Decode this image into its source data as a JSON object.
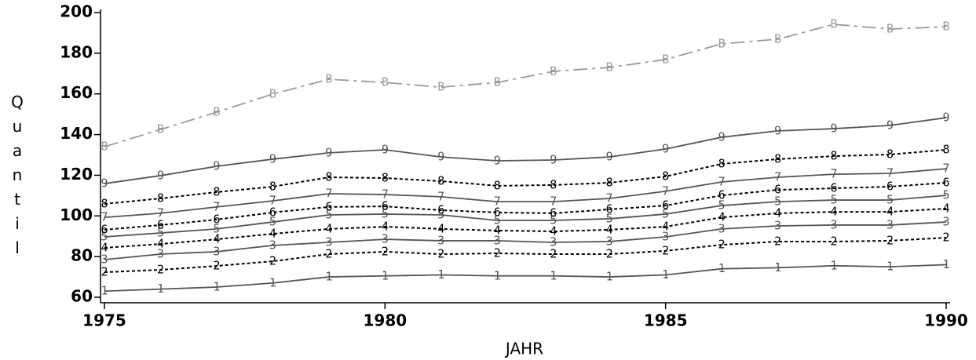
{
  "chart_data": {
    "type": "line",
    "x_label": "JAHR",
    "y_label": "Quantil",
    "x": [
      1975,
      1976,
      1977,
      1978,
      1979,
      1980,
      1981,
      1982,
      1983,
      1984,
      1985,
      1986,
      1987,
      1988,
      1989,
      1990
    ],
    "xlim": [
      1975,
      1990
    ],
    "xticks": [
      1975,
      1980,
      1985,
      1990
    ],
    "ylim": [
      60,
      200
    ],
    "yticks": [
      60,
      80,
      100,
      120,
      140,
      160,
      180,
      200
    ],
    "series": [
      {
        "name": "1",
        "color": "#555555",
        "line_style": "solid",
        "values": [
          63,
          64,
          65,
          67,
          70,
          70.5,
          71,
          70.5,
          70.5,
          70,
          71,
          74,
          74.5,
          75.5,
          75,
          76
        ]
      },
      {
        "name": "2",
        "color": "#000000",
        "line_style": "dotted",
        "values": [
          72.3,
          73.5,
          75.4,
          77.7,
          81.2,
          82.4,
          81.2,
          81.6,
          81.2,
          81.2,
          82.8,
          85.8,
          87.4,
          87.4,
          87.8,
          89.3
        ]
      },
      {
        "name": "3",
        "color": "#555555",
        "line_style": "solid",
        "values": [
          78.5,
          81.2,
          82.4,
          85.5,
          87,
          88.5,
          87.8,
          87.8,
          87,
          87.4,
          89.7,
          93.6,
          95.1,
          95.5,
          95.5,
          97
        ]
      },
      {
        "name": "4",
        "color": "#000000",
        "line_style": "dotted",
        "values": [
          84.3,
          86.2,
          88.5,
          91.2,
          93.6,
          94.7,
          93.6,
          92.8,
          92.4,
          93.2,
          94.7,
          99.3,
          101.3,
          102,
          102,
          103.6
        ]
      },
      {
        "name": "5",
        "color": "#555555",
        "line_style": "solid",
        "values": [
          89.7,
          91.6,
          93.6,
          97,
          100.5,
          100.9,
          100.5,
          97.8,
          97.8,
          98.6,
          100.9,
          105.1,
          107,
          107.8,
          107.8,
          110.1
        ]
      },
      {
        "name": "6",
        "color": "#000000",
        "line_style": "dotted",
        "values": [
          93.2,
          95.5,
          98.2,
          101.7,
          104.4,
          104.7,
          102.8,
          101.7,
          101.3,
          103.2,
          105.1,
          110.1,
          112.8,
          113.6,
          114.4,
          116.3
        ]
      },
      {
        "name": "7",
        "color": "#555555",
        "line_style": "solid",
        "values": [
          99.3,
          101.3,
          104.4,
          107.4,
          110.9,
          110.5,
          109.4,
          107,
          107,
          108.6,
          112.1,
          116.7,
          119,
          120.5,
          120.9,
          123.2
        ]
      },
      {
        "name": "8",
        "color": "#000000",
        "line_style": "dotted",
        "values": [
          105.9,
          108.6,
          111.7,
          114.4,
          119,
          118.6,
          117.1,
          114.8,
          115.2,
          116.3,
          119.4,
          125.6,
          127.9,
          129.4,
          130.2,
          132.5
        ]
      },
      {
        "name": "9",
        "color": "#555555",
        "line_style": "solid",
        "values": [
          115.9,
          119.8,
          124.4,
          127.9,
          131,
          132.5,
          129,
          127.1,
          127.5,
          129,
          132.9,
          138.7,
          141.8,
          142.9,
          144.5,
          148.3
        ]
      },
      {
        "name": "B",
        "color": "#999999",
        "line_style": "dashdot",
        "values": [
          134,
          142.5,
          151,
          159.9,
          167.2,
          165.6,
          163.3,
          165.6,
          171.1,
          173,
          176.9,
          184.6,
          186.9,
          194.2,
          191.9,
          193
        ]
      }
    ]
  }
}
